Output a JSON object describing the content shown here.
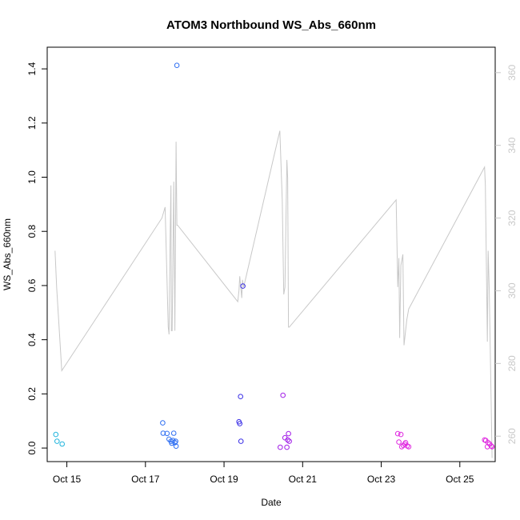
{
  "chart_data": {
    "type": "scatter",
    "title": "ATOM3 Northbound WS_Abs_660nm",
    "xlabel": "Date",
    "ylabel": "WS_Abs_660nm",
    "x_unit": "day of October",
    "xlim": [
      14.5,
      25.9
    ],
    "ylim": [
      -0.05,
      1.48
    ],
    "y2lim": [
      253,
      367
    ],
    "x_ticks": [
      15,
      17,
      19,
      21,
      23,
      25
    ],
    "x_tick_labels": [
      "Oct 15",
      "Oct 17",
      "Oct 19",
      "Oct 21",
      "Oct 23",
      "Oct 25"
    ],
    "y_ticks": [
      0.0,
      0.2,
      0.4,
      0.6,
      0.8,
      1.0,
      1.2,
      1.4
    ],
    "y_tick_labels": [
      "0.0",
      "0.2",
      "0.4",
      "0.6",
      "0.8",
      "1.0",
      "1.2",
      "1.4"
    ],
    "y2_ticks": [
      260,
      280,
      300,
      320,
      340,
      360
    ],
    "y2_tick_labels": [
      "260",
      "280",
      "300",
      "320",
      "340",
      "360"
    ],
    "grid": false,
    "legend": "none",
    "marker": "open-circle",
    "colors": {
      "line": "#c8c8c8",
      "right_axis": "#c8c8c8",
      "cyan": "#22b5dd",
      "blue": "#2f6ff2",
      "indigo": "#3a2fe6",
      "purple": "#a21ee8",
      "magenta": "#e02be0"
    },
    "points": [
      {
        "x": 14.72,
        "y": 0.05,
        "c": "cyan"
      },
      {
        "x": 14.75,
        "y": 0.025,
        "c": "cyan"
      },
      {
        "x": 14.88,
        "y": 0.015,
        "c": "cyan"
      },
      {
        "x": 17.44,
        "y": 0.093,
        "c": "blue"
      },
      {
        "x": 17.45,
        "y": 0.055,
        "c": "blue"
      },
      {
        "x": 17.55,
        "y": 0.054,
        "c": "blue"
      },
      {
        "x": 17.6,
        "y": 0.033,
        "c": "blue"
      },
      {
        "x": 17.65,
        "y": 0.025,
        "c": "blue"
      },
      {
        "x": 17.67,
        "y": 0.018,
        "c": "blue"
      },
      {
        "x": 17.7,
        "y": 0.028,
        "c": "blue"
      },
      {
        "x": 17.72,
        "y": 0.055,
        "c": "blue"
      },
      {
        "x": 17.75,
        "y": 0.02,
        "c": "blue"
      },
      {
        "x": 17.77,
        "y": 0.025,
        "c": "blue"
      },
      {
        "x": 17.78,
        "y": 0.007,
        "c": "blue"
      },
      {
        "x": 17.8,
        "y": 1.413,
        "c": "blue"
      },
      {
        "x": 19.38,
        "y": 0.097,
        "c": "indigo"
      },
      {
        "x": 19.4,
        "y": 0.09,
        "c": "indigo"
      },
      {
        "x": 19.42,
        "y": 0.19,
        "c": "indigo"
      },
      {
        "x": 19.43,
        "y": 0.025,
        "c": "indigo"
      },
      {
        "x": 19.48,
        "y": 0.598,
        "c": "indigo"
      },
      {
        "x": 20.43,
        "y": 0.003,
        "c": "purple"
      },
      {
        "x": 20.5,
        "y": 0.195,
        "c": "purple"
      },
      {
        "x": 20.55,
        "y": 0.038,
        "c": "purple"
      },
      {
        "x": 20.6,
        "y": 0.003,
        "c": "purple"
      },
      {
        "x": 20.62,
        "y": 0.03,
        "c": "purple"
      },
      {
        "x": 20.64,
        "y": 0.053,
        "c": "purple"
      },
      {
        "x": 20.66,
        "y": 0.025,
        "c": "purple"
      },
      {
        "x": 23.42,
        "y": 0.053,
        "c": "magenta"
      },
      {
        "x": 23.45,
        "y": 0.022,
        "c": "magenta"
      },
      {
        "x": 23.5,
        "y": 0.05,
        "c": "magenta"
      },
      {
        "x": 23.52,
        "y": 0.005,
        "c": "magenta"
      },
      {
        "x": 23.56,
        "y": 0.01,
        "c": "magenta"
      },
      {
        "x": 23.6,
        "y": 0.015,
        "c": "magenta"
      },
      {
        "x": 23.62,
        "y": 0.02,
        "c": "magenta"
      },
      {
        "x": 23.66,
        "y": 0.008,
        "c": "magenta"
      },
      {
        "x": 23.7,
        "y": 0.005,
        "c": "magenta"
      },
      {
        "x": 25.63,
        "y": 0.03,
        "c": "magenta"
      },
      {
        "x": 25.66,
        "y": 0.028,
        "c": "magenta"
      },
      {
        "x": 25.7,
        "y": 0.005,
        "c": "magenta"
      },
      {
        "x": 25.72,
        "y": 0.02,
        "c": "magenta"
      },
      {
        "x": 25.76,
        "y": 0.015,
        "c": "magenta"
      },
      {
        "x": 25.8,
        "y": 0.008,
        "c": "magenta"
      },
      {
        "x": 25.82,
        "y": 0.005,
        "c": "magenta"
      }
    ],
    "line_y2": {
      "x": [
        14.7,
        14.74,
        14.87,
        17.42,
        17.5,
        17.58,
        17.6,
        17.63,
        17.65,
        17.66,
        17.68,
        17.72,
        17.75,
        17.78,
        17.8,
        17.82,
        19.35,
        19.38,
        19.4,
        19.45,
        19.47,
        19.5,
        20.42,
        20.48,
        20.52,
        20.55,
        20.6,
        20.62,
        20.64,
        20.66,
        23.38,
        23.42,
        23.45,
        23.47,
        23.5,
        23.55,
        23.58,
        23.65,
        23.7,
        25.63,
        25.65,
        25.7,
        25.72,
        25.75,
        25.82
      ],
      "y": [
        311,
        301,
        278,
        320,
        323,
        290,
        288,
        317,
        329,
        289,
        289,
        330,
        289,
        341,
        318,
        318,
        297,
        300,
        304,
        298,
        303,
        301,
        344,
        325,
        299,
        301,
        336,
        331,
        290,
        290,
        325,
        301,
        309,
        287,
        307,
        310,
        285,
        292,
        295,
        334,
        329,
        286,
        311,
        300,
        254
      ]
    }
  }
}
